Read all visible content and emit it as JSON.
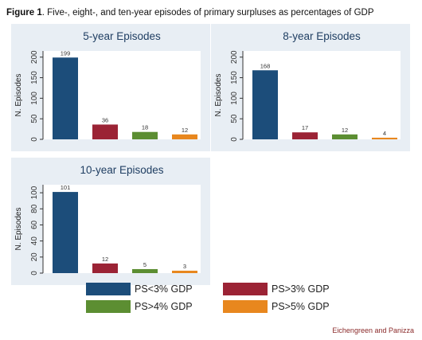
{
  "caption": {
    "label": "Figure 1",
    "text": ". Five-, eight-, and ten-year episodes of primary surpluses as percentages of GDP"
  },
  "credit": "Eichengreen and Panizza",
  "colors": {
    "PS<3% GDP": "#1c4d7a",
    "PS>3% GDP": "#9b2335",
    "PS>4% GDP": "#5c8e32",
    "PS>5% GDP": "#e8871e",
    "panel_bg": "#e8eef4",
    "title_color": "#1f3e62"
  },
  "legend": {
    "items": [
      {
        "label": "PS<3% GDP",
        "color": "#1c4d7a"
      },
      {
        "label": "PS>3% GDP",
        "color": "#9b2335"
      },
      {
        "label": "PS>4% GDP",
        "color": "#5c8e32"
      },
      {
        "label": "PS>5% GDP",
        "color": "#e8871e"
      }
    ]
  },
  "chart_data": [
    {
      "type": "bar",
      "title": "5-year Episodes",
      "ylabel": "N. Episodes",
      "categories": [
        "PS<3% GDP",
        "PS>3% GDP",
        "PS>4% GDP",
        "PS>5% GDP"
      ],
      "values": [
        199,
        36,
        18,
        12
      ],
      "data_labels": [
        "199",
        "36",
        "18",
        "12"
      ],
      "ylim": [
        0,
        215
      ],
      "yticks": [
        0,
        50,
        100,
        150,
        200
      ],
      "ytick_labels": [
        "0",
        "50",
        "100",
        "150",
        "200"
      ],
      "grid": false
    },
    {
      "type": "bar",
      "title": "8-year Episodes",
      "ylabel": "N. Episodes",
      "categories": [
        "PS<3% GDP",
        "PS>3% GDP",
        "PS>4% GDP",
        "PS>5% GDP"
      ],
      "values": [
        168,
        17,
        12,
        4
      ],
      "data_labels": [
        "168",
        "17",
        "12",
        "4"
      ],
      "ylim": [
        0,
        215
      ],
      "yticks": [
        0,
        50,
        100,
        150,
        200
      ],
      "ytick_labels": [
        "0",
        "50",
        "100",
        "150",
        "200"
      ],
      "grid": false
    },
    {
      "type": "bar",
      "title": "10-year Episodes",
      "ylabel": "N. Episodes",
      "categories": [
        "PS<3% GDP",
        "PS>3% GDP",
        "PS>4% GDP",
        "PS>5% GDP"
      ],
      "values": [
        101,
        12,
        5,
        3
      ],
      "data_labels": [
        "101",
        "12",
        "5",
        "3"
      ],
      "ylim": [
        0,
        110
      ],
      "yticks": [
        0,
        20,
        40,
        60,
        80,
        100
      ],
      "ytick_labels": [
        "0",
        "20",
        "40",
        "60",
        "80",
        "100"
      ],
      "grid": false
    }
  ]
}
